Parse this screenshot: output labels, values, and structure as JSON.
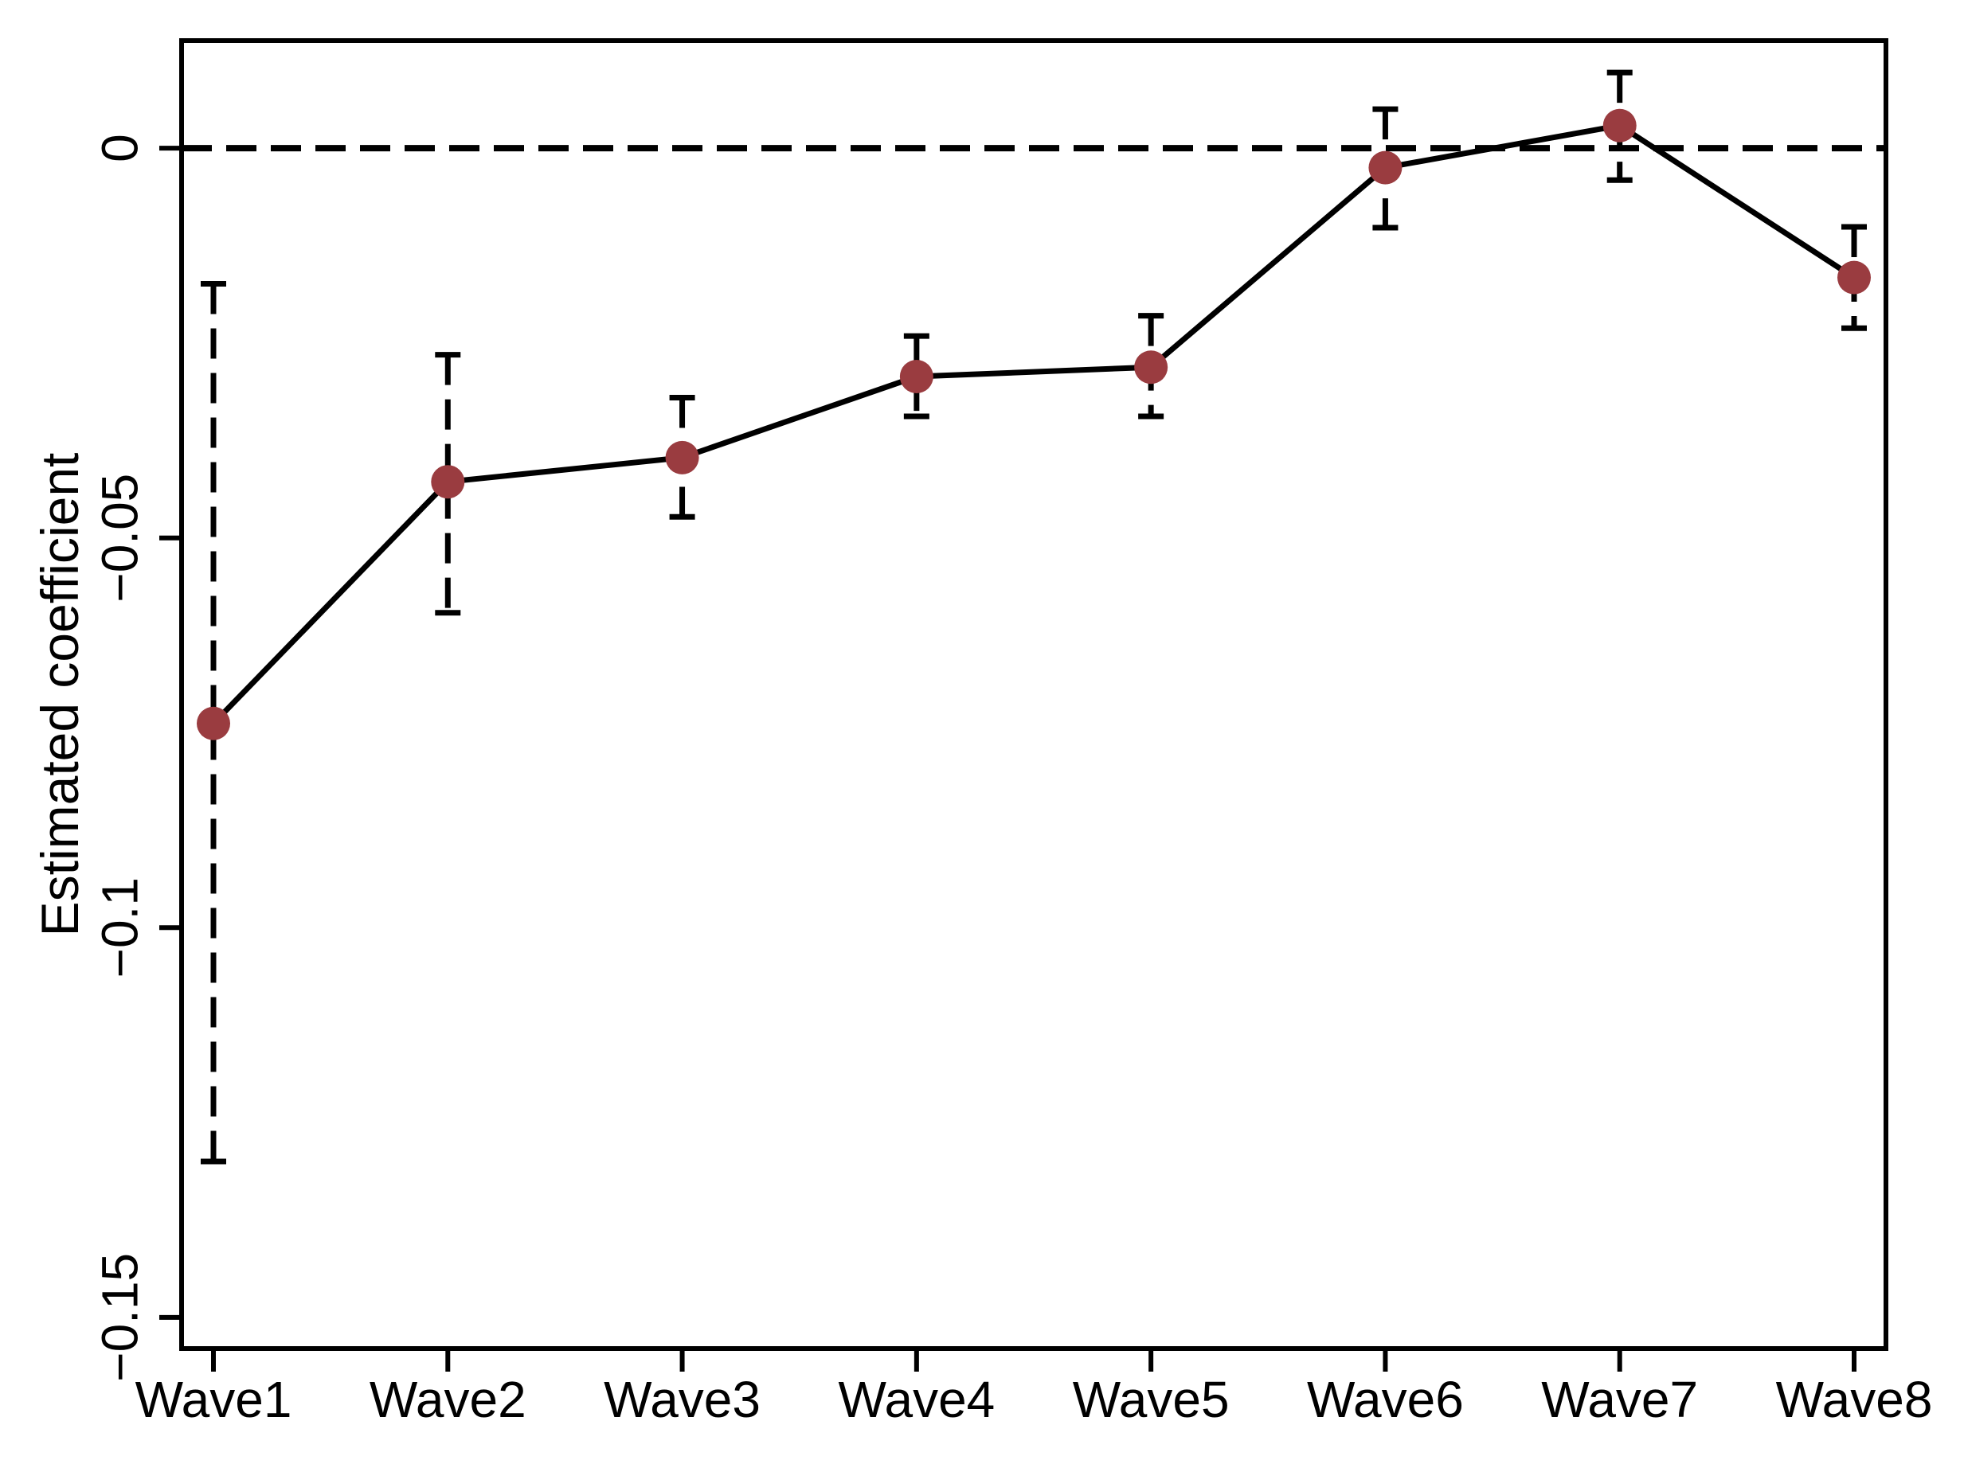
{
  "figure": {
    "background": "#ffffff",
    "description": "Coefficient plot with confidence intervals by survey wave"
  },
  "chart_data": {
    "type": "line",
    "title": "",
    "xlabel": "",
    "ylabel": "Estimated coefficient",
    "categories": [
      "Wave1",
      "Wave2",
      "Wave3",
      "Wave4",
      "Wave5",
      "Wave6",
      "Wave7",
      "Wave8"
    ],
    "series": [
      {
        "name": "Estimated coefficient",
        "values": [
          -0.0738,
          -0.0428,
          -0.0397,
          -0.0293,
          -0.0281,
          -0.0025,
          0.0029,
          -0.0166
        ],
        "ci_low": [
          -0.13,
          -0.0596,
          -0.0473,
          -0.0344,
          -0.0344,
          -0.0102,
          -0.0041,
          -0.0231
        ],
        "ci_high": [
          -0.0174,
          -0.0265,
          -0.032,
          -0.0241,
          -0.0215,
          0.005,
          0.0097,
          -0.0101
        ]
      }
    ],
    "y_ticks": [
      0,
      -0.05,
      -0.1,
      -0.15
    ],
    "y_tick_labels": [
      "0",
      "−0.05",
      "−0.1",
      "−0.15"
    ],
    "ylim": [
      -0.154,
      0.0138
    ],
    "reference_line_y": 0,
    "grid": false,
    "legend": false,
    "line_style": "solid",
    "ci_style": "dashed-with-caps",
    "marker_color": "#9a3c40",
    "line_color": "#000000",
    "axis_color": "#000000"
  }
}
